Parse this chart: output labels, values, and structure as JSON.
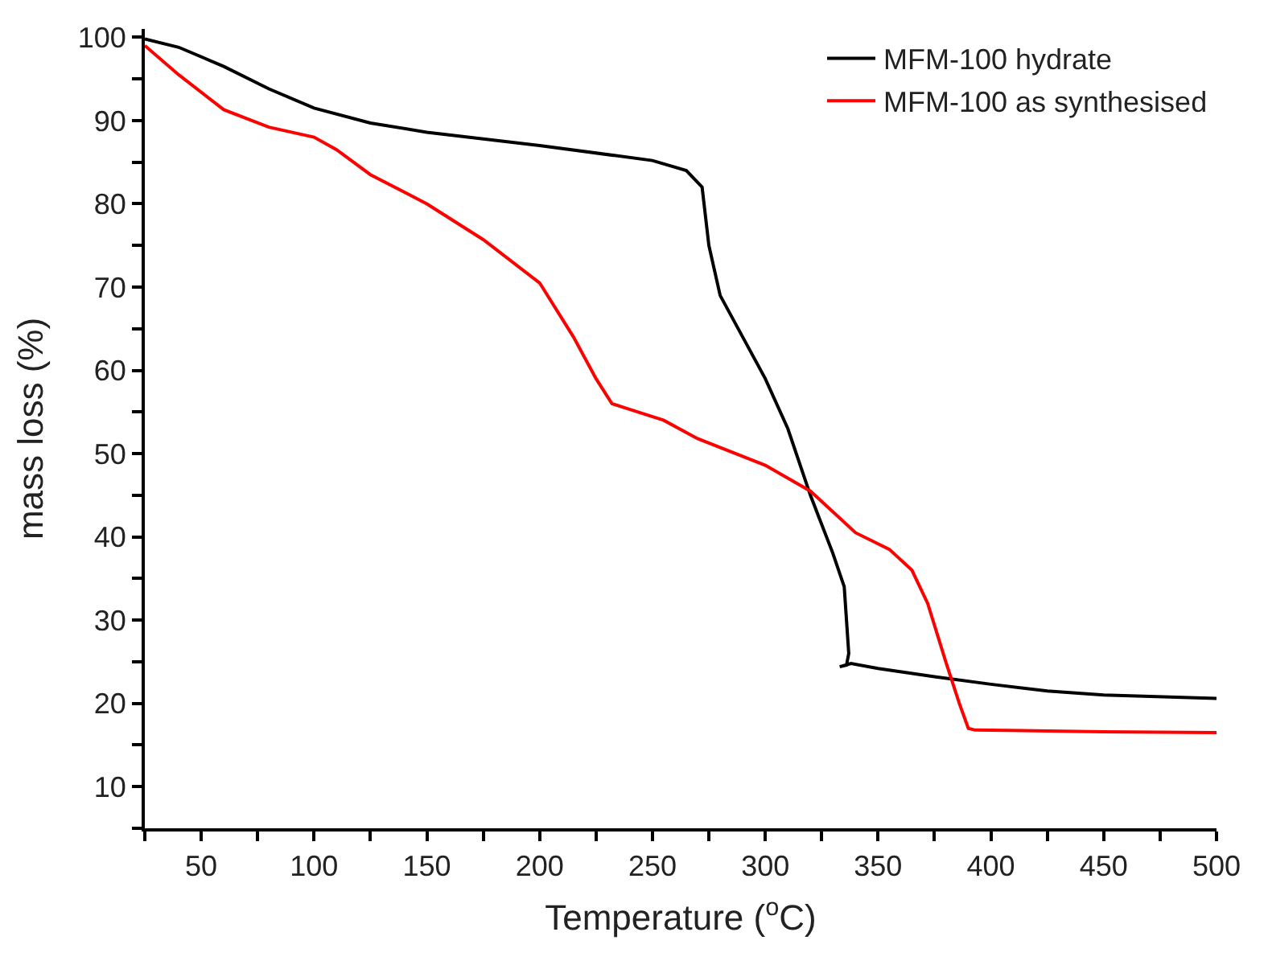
{
  "chart_data": {
    "type": "line",
    "xlabel": "Temperature ($^{o}$C)",
    "ylabel": "mass loss (%)",
    "xlim": [
      25,
      500
    ],
    "ylim": [
      5,
      101
    ],
    "xticks": [
      {
        "value": 25,
        "label": null
      },
      50,
      {
        "value": 75,
        "label": null
      },
      100,
      {
        "value": 125,
        "label": null
      },
      150,
      {
        "value": 175,
        "label": null
      },
      200,
      {
        "value": 225,
        "label": null
      },
      250,
      {
        "value": 275,
        "label": null
      },
      300,
      {
        "value": 325,
        "label": null
      },
      350,
      {
        "value": 375,
        "label": null
      },
      400,
      {
        "value": 425,
        "label": null
      },
      450,
      {
        "value": 475,
        "label": null
      },
      500
    ],
    "yticks": [
      {
        "value": 5,
        "label": null
      },
      10,
      {
        "value": 15,
        "label": null
      },
      20,
      {
        "value": 25,
        "label": null
      },
      30,
      {
        "value": 35,
        "label": null
      },
      40,
      {
        "value": 45,
        "label": null
      },
      50,
      {
        "value": 55,
        "label": null
      },
      60,
      {
        "value": 65,
        "label": null
      },
      70,
      {
        "value": 75,
        "label": null
      },
      80,
      {
        "value": 85,
        "label": null
      },
      90,
      {
        "value": 95,
        "label": null
      },
      100
    ],
    "legend": "top right",
    "marker": "none",
    "line_style": "solid",
    "series": [
      {
        "name": "MFM-100 hydrate",
        "color": "#000000",
        "x": [
          25,
          40,
          60,
          80,
          100,
          125,
          150,
          200,
          250,
          265,
          272,
          275,
          280,
          290,
          300,
          310,
          320,
          330,
          335,
          336,
          337,
          336,
          333,
          338,
          350,
          375,
          400,
          425,
          450,
          500
        ],
        "values": [
          99.8,
          98.8,
          96.5,
          93.8,
          91.5,
          89.7,
          88.6,
          87.0,
          85.2,
          84,
          82,
          75,
          69,
          64,
          59,
          53,
          45,
          38,
          34,
          30,
          26,
          24.6,
          24.4,
          24.8,
          24.2,
          23.2,
          22.3,
          21.5,
          21,
          20.6
        ]
      },
      {
        "name": "MFM-100 as synthesised",
        "color": "#ff0000",
        "x": [
          25,
          40,
          60,
          80,
          100,
          110,
          125,
          150,
          175,
          200,
          215,
          225,
          232,
          240,
          255,
          270,
          300,
          320,
          330,
          340,
          355,
          365,
          372,
          380,
          386,
          390,
          393,
          450,
          500
        ],
        "values": [
          99,
          95.5,
          91.3,
          89.2,
          88,
          86.5,
          83.5,
          80,
          75.7,
          70.5,
          64,
          59,
          56,
          55.3,
          54,
          51.8,
          48.6,
          45.5,
          43,
          40.5,
          38.5,
          36,
          32,
          25,
          20,
          17,
          16.8,
          16.6,
          16.5
        ]
      }
    ]
  }
}
